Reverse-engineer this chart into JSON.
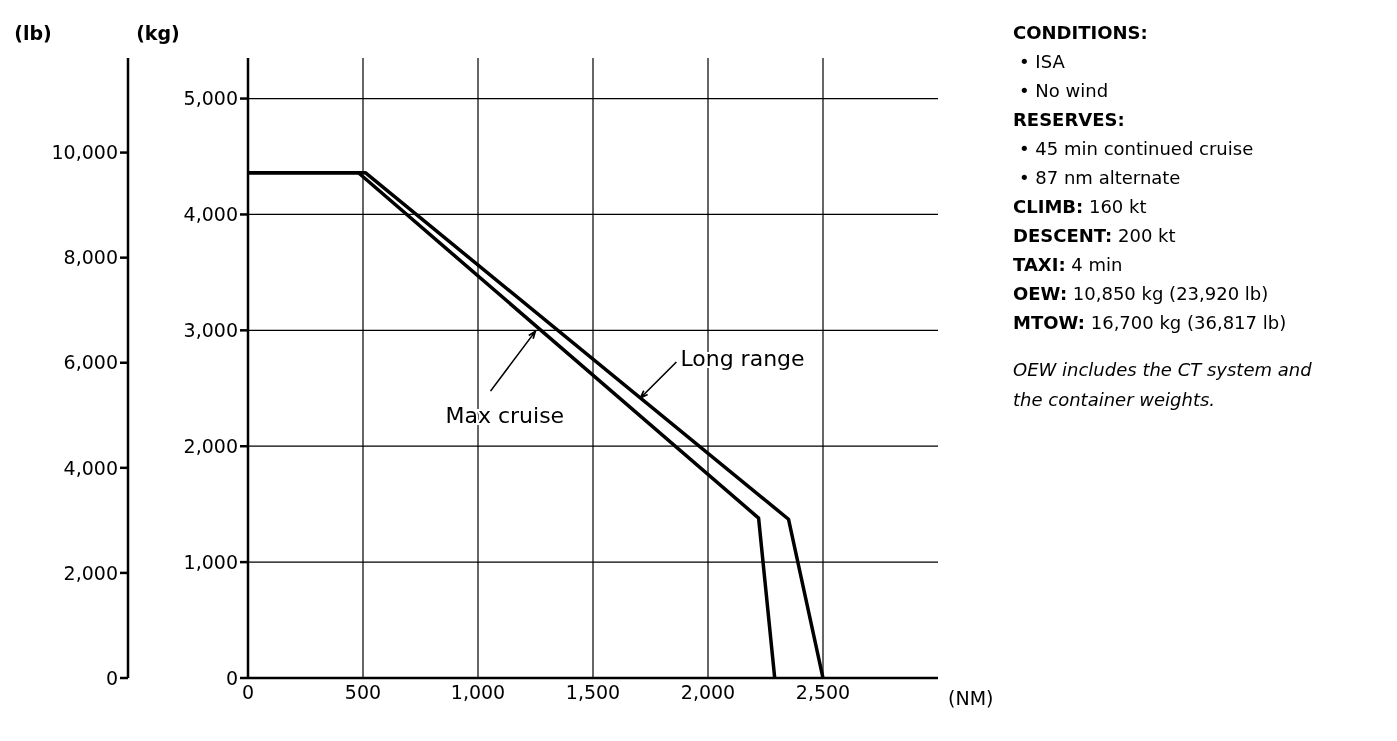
{
  "chart_data": {
    "type": "line",
    "xlabel": "(NM)",
    "ylabel": "(kg)",
    "y2label": "(lb)",
    "x": [
      0,
      480,
      2220,
      2290
    ],
    "series": [
      {
        "name": "Max cruise",
        "color": "#000000",
        "values": [
          4360,
          4360,
          1380,
          0
        ]
      },
      {
        "name": "Long range",
        "color": "#000000",
        "x": [
          0,
          510,
          2350,
          2500
        ],
        "values": [
          4360,
          4360,
          1370,
          0
        ]
      }
    ],
    "xlim": [
      0,
      3000
    ],
    "xticks": [
      0,
      500,
      {
        "value": 1000,
        "label": "1,000"
      },
      {
        "value": 1500,
        "label": "1,500"
      },
      {
        "value": 2000,
        "label": "2,000"
      },
      {
        "value": 2500,
        "label": "2,500"
      }
    ],
    "ylim": [
      0,
      5350
    ],
    "yticks": [
      0,
      {
        "value": 1000,
        "label": "1,000"
      },
      {
        "value": 2000,
        "label": "2,000"
      },
      {
        "value": 3000,
        "label": "3,000"
      },
      {
        "value": 4000,
        "label": "4,000"
      },
      {
        "value": 5000,
        "label": "5,000"
      }
    ],
    "y2lim": [
      0,
      11800
    ],
    "y2ticks": [
      0,
      {
        "value": 2000,
        "label": "2,000"
      },
      {
        "value": 4000,
        "label": "4,000"
      },
      {
        "value": 6000,
        "label": "6,000"
      },
      {
        "value": 8000,
        "label": "8,000"
      },
      {
        "value": 10000,
        "label": "10,000"
      }
    ],
    "grid": true,
    "legend": false,
    "marker": "none",
    "line_style": "solid",
    "annotations": [
      "CONDITIONS:",
      "• ISA",
      "• No wind",
      "RESERVES:",
      "• 45 min continued cruise",
      "• 87 nm alternate",
      "CLIMB: 160 kt",
      "DESCENT: 200 kt",
      "TAXI: 4 min",
      "OEW: 10,850 kg (23,920 lb)",
      "MTOW: 16,700 kg (36,817 lb)",
      "OEW includes the CT system and the container weights."
    ]
  }
}
